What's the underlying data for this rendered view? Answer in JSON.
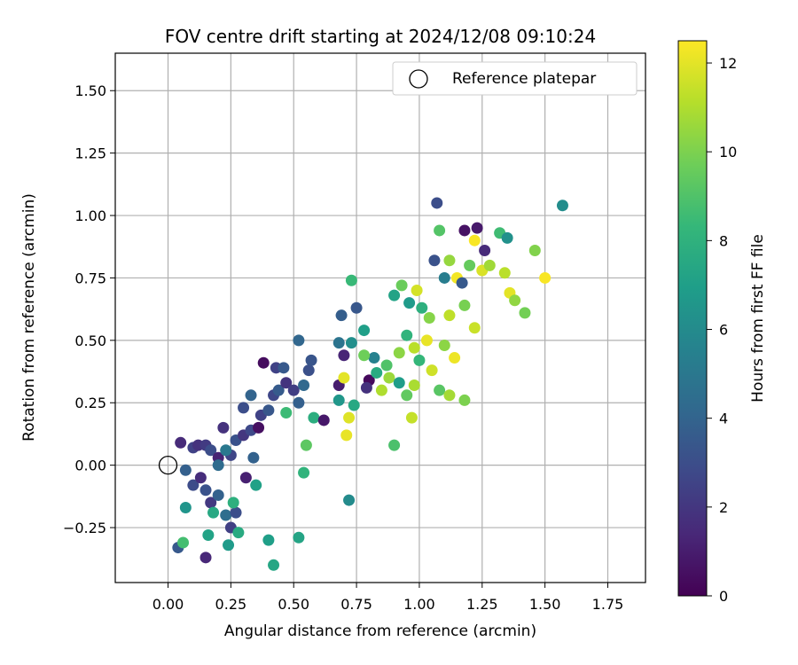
{
  "chart_data": {
    "type": "scatter",
    "title": "FOV centre drift starting at 2024/12/08 09:10:24",
    "xlabel": "Angular distance from reference (arcmin)",
    "ylabel": "Rotation from reference (arcmin)",
    "xlim": [
      -0.21,
      1.9
    ],
    "ylim": [
      -0.47,
      1.65
    ],
    "xticks": [
      "0.00",
      "0.25",
      "0.50",
      "0.75",
      "1.00",
      "1.25",
      "1.50",
      "1.75"
    ],
    "yticks": [
      "−0.25",
      "0.00",
      "0.25",
      "0.50",
      "0.75",
      "1.00",
      "1.25",
      "1.50"
    ],
    "grid": true,
    "legend": {
      "position": "top-right",
      "entries": [
        "Reference platepar"
      ]
    },
    "reference_point": {
      "x": 0.0,
      "y": 0.0
    },
    "colorbar": {
      "label": "Hours from first FF file",
      "range": [
        0,
        12.5
      ],
      "ticks": [
        "0",
        "2",
        "4",
        "6",
        "8",
        "10",
        "12"
      ],
      "colormap": "viridis"
    },
    "colormap_stops": [
      "#440154",
      "#482878",
      "#3e4989",
      "#31688e",
      "#26828e",
      "#1f9e89",
      "#35b779",
      "#6ece58",
      "#b5de2b",
      "#fde725"
    ],
    "points": [
      {
        "x": 0.05,
        "y": 0.09,
        "h": 1.5
      },
      {
        "x": 0.1,
        "y": 0.07,
        "h": 2.5
      },
      {
        "x": 0.12,
        "y": 0.08,
        "h": 1.8
      },
      {
        "x": 0.15,
        "y": 0.08,
        "h": 2.2
      },
      {
        "x": 0.17,
        "y": 0.06,
        "h": 3.0
      },
      {
        "x": 0.2,
        "y": 0.03,
        "h": 1.2
      },
      {
        "x": 0.22,
        "y": 0.15,
        "h": 1.8
      },
      {
        "x": 0.25,
        "y": 0.04,
        "h": 2.6
      },
      {
        "x": 0.27,
        "y": 0.1,
        "h": 3.2
      },
      {
        "x": 0.3,
        "y": 0.12,
        "h": 2.0
      },
      {
        "x": 0.33,
        "y": 0.14,
        "h": 2.8
      },
      {
        "x": 0.36,
        "y": 0.15,
        "h": 0.5
      },
      {
        "x": 0.3,
        "y": 0.23,
        "h": 3.0
      },
      {
        "x": 0.33,
        "y": 0.28,
        "h": 4.0
      },
      {
        "x": 0.37,
        "y": 0.2,
        "h": 2.5
      },
      {
        "x": 0.4,
        "y": 0.22,
        "h": 3.4
      },
      {
        "x": 0.42,
        "y": 0.28,
        "h": 2.7
      },
      {
        "x": 0.44,
        "y": 0.3,
        "h": 3.6
      },
      {
        "x": 0.47,
        "y": 0.33,
        "h": 1.9
      },
      {
        "x": 0.5,
        "y": 0.3,
        "h": 2.3
      },
      {
        "x": 0.52,
        "y": 0.25,
        "h": 3.8
      },
      {
        "x": 0.54,
        "y": 0.32,
        "h": 4.2
      },
      {
        "x": 0.56,
        "y": 0.38,
        "h": 3.1
      },
      {
        "x": 0.38,
        "y": 0.41,
        "h": 0.4
      },
      {
        "x": 0.43,
        "y": 0.39,
        "h": 2.5
      },
      {
        "x": 0.46,
        "y": 0.39,
        "h": 3.5
      },
      {
        "x": 0.52,
        "y": 0.5,
        "h": 4.1
      },
      {
        "x": 0.57,
        "y": 0.42,
        "h": 3.3
      },
      {
        "x": 0.07,
        "y": -0.02,
        "h": 3.8
      },
      {
        "x": 0.1,
        "y": -0.08,
        "h": 2.9
      },
      {
        "x": 0.13,
        "y": -0.05,
        "h": 1.6
      },
      {
        "x": 0.15,
        "y": -0.1,
        "h": 3.2
      },
      {
        "x": 0.17,
        "y": -0.15,
        "h": 2.1
      },
      {
        "x": 0.2,
        "y": -0.12,
        "h": 3.9
      },
      {
        "x": 0.23,
        "y": -0.2,
        "h": 4.5
      },
      {
        "x": 0.25,
        "y": -0.25,
        "h": 2.4
      },
      {
        "x": 0.27,
        "y": -0.19,
        "h": 3.0
      },
      {
        "x": 0.04,
        "y": -0.33,
        "h": 3.5
      },
      {
        "x": 0.15,
        "y": -0.37,
        "h": 1.4
      },
      {
        "x": 0.07,
        "y": -0.17,
        "h": 6.5
      },
      {
        "x": 0.18,
        "y": -0.19,
        "h": 7.5
      },
      {
        "x": 0.06,
        "y": -0.31,
        "h": 8.7
      },
      {
        "x": 0.16,
        "y": -0.28,
        "h": 7.2
      },
      {
        "x": 0.24,
        "y": -0.32,
        "h": 6.8
      },
      {
        "x": 0.28,
        "y": -0.27,
        "h": 7.6
      },
      {
        "x": 0.26,
        "y": -0.15,
        "h": 7.9
      },
      {
        "x": 0.35,
        "y": -0.08,
        "h": 7.1
      },
      {
        "x": 0.4,
        "y": -0.3,
        "h": 7.0
      },
      {
        "x": 0.42,
        "y": -0.4,
        "h": 7.4
      },
      {
        "x": 0.52,
        "y": -0.29,
        "h": 7.3
      },
      {
        "x": 0.54,
        "y": -0.03,
        "h": 8.1
      },
      {
        "x": 0.55,
        "y": 0.08,
        "h": 9.3
      },
      {
        "x": 0.47,
        "y": 0.21,
        "h": 8.5
      },
      {
        "x": 0.58,
        "y": 0.19,
        "h": 7.8
      },
      {
        "x": 0.62,
        "y": 0.18,
        "h": 0.8
      },
      {
        "x": 0.68,
        "y": 0.32,
        "h": 1.0
      },
      {
        "x": 0.7,
        "y": 0.44,
        "h": 1.3
      },
      {
        "x": 0.69,
        "y": 0.6,
        "h": 3.7
      },
      {
        "x": 0.75,
        "y": 0.63,
        "h": 3.4
      },
      {
        "x": 0.68,
        "y": 0.49,
        "h": 4.8
      },
      {
        "x": 0.73,
        "y": 0.49,
        "h": 6.2
      },
      {
        "x": 0.78,
        "y": 0.54,
        "h": 7.0
      },
      {
        "x": 0.82,
        "y": 0.43,
        "h": 5.5
      },
      {
        "x": 0.8,
        "y": 0.34,
        "h": 0.3
      },
      {
        "x": 0.79,
        "y": 0.31,
        "h": 1.8
      },
      {
        "x": 0.83,
        "y": 0.37,
        "h": 7.6
      },
      {
        "x": 0.85,
        "y": 0.3,
        "h": 11.0
      },
      {
        "x": 0.88,
        "y": 0.35,
        "h": 10.6
      },
      {
        "x": 0.92,
        "y": 0.33,
        "h": 6.9
      },
      {
        "x": 0.95,
        "y": 0.28,
        "h": 9.4
      },
      {
        "x": 0.98,
        "y": 0.32,
        "h": 10.9
      },
      {
        "x": 1.0,
        "y": 0.42,
        "h": 8.3
      },
      {
        "x": 0.73,
        "y": 0.74,
        "h": 8.4
      },
      {
        "x": 0.9,
        "y": 0.68,
        "h": 7.2
      },
      {
        "x": 0.93,
        "y": 0.72,
        "h": 9.6
      },
      {
        "x": 0.96,
        "y": 0.65,
        "h": 6.8
      },
      {
        "x": 0.99,
        "y": 0.7,
        "h": 11.7
      },
      {
        "x": 1.01,
        "y": 0.63,
        "h": 7.9
      },
      {
        "x": 1.04,
        "y": 0.59,
        "h": 10.2
      },
      {
        "x": 1.06,
        "y": 0.82,
        "h": 3.2
      },
      {
        "x": 1.07,
        "y": 1.05,
        "h": 3.0
      },
      {
        "x": 1.08,
        "y": 0.94,
        "h": 9.1
      },
      {
        "x": 1.1,
        "y": 0.75,
        "h": 5.3
      },
      {
        "x": 1.12,
        "y": 0.82,
        "h": 10.5
      },
      {
        "x": 1.15,
        "y": 0.75,
        "h": 12.3
      },
      {
        "x": 1.17,
        "y": 0.73,
        "h": 3.5
      },
      {
        "x": 1.18,
        "y": 0.94,
        "h": 0.6
      },
      {
        "x": 1.2,
        "y": 0.8,
        "h": 9.5
      },
      {
        "x": 1.22,
        "y": 0.9,
        "h": 12.4
      },
      {
        "x": 1.23,
        "y": 0.95,
        "h": 0.9
      },
      {
        "x": 1.25,
        "y": 0.78,
        "h": 11.8
      },
      {
        "x": 1.26,
        "y": 0.86,
        "h": 1.5
      },
      {
        "x": 1.28,
        "y": 0.8,
        "h": 10.7
      },
      {
        "x": 1.32,
        "y": 0.93,
        "h": 8.6
      },
      {
        "x": 1.34,
        "y": 0.77,
        "h": 11.2
      },
      {
        "x": 1.35,
        "y": 0.91,
        "h": 6.3
      },
      {
        "x": 1.36,
        "y": 0.69,
        "h": 12.0
      },
      {
        "x": 1.38,
        "y": 0.66,
        "h": 10.4
      },
      {
        "x": 1.42,
        "y": 0.61,
        "h": 9.8
      },
      {
        "x": 1.46,
        "y": 0.86,
        "h": 10.1
      },
      {
        "x": 1.5,
        "y": 0.75,
        "h": 12.4
      },
      {
        "x": 1.57,
        "y": 1.04,
        "h": 6.1
      },
      {
        "x": 1.12,
        "y": 0.6,
        "h": 11.3
      },
      {
        "x": 1.18,
        "y": 0.64,
        "h": 9.9
      },
      {
        "x": 1.22,
        "y": 0.55,
        "h": 11.5
      },
      {
        "x": 1.1,
        "y": 0.48,
        "h": 10.3
      },
      {
        "x": 1.14,
        "y": 0.43,
        "h": 12.2
      },
      {
        "x": 1.05,
        "y": 0.38,
        "h": 11.6
      },
      {
        "x": 1.08,
        "y": 0.3,
        "h": 9.2
      },
      {
        "x": 1.12,
        "y": 0.28,
        "h": 10.8
      },
      {
        "x": 1.18,
        "y": 0.26,
        "h": 10.0
      },
      {
        "x": 0.71,
        "y": 0.12,
        "h": 12.1
      },
      {
        "x": 0.72,
        "y": 0.19,
        "h": 11.9
      },
      {
        "x": 0.74,
        "y": 0.24,
        "h": 7.5
      },
      {
        "x": 0.72,
        "y": -0.14,
        "h": 6.0
      },
      {
        "x": 0.9,
        "y": 0.08,
        "h": 8.9
      },
      {
        "x": 0.97,
        "y": 0.19,
        "h": 11.4
      },
      {
        "x": 0.68,
        "y": 0.26,
        "h": 6.6
      },
      {
        "x": 0.7,
        "y": 0.35,
        "h": 12.0
      },
      {
        "x": 0.78,
        "y": 0.44,
        "h": 9.7
      },
      {
        "x": 0.87,
        "y": 0.4,
        "h": 9.0
      },
      {
        "x": 0.92,
        "y": 0.45,
        "h": 10.3
      },
      {
        "x": 0.95,
        "y": 0.52,
        "h": 8.1
      },
      {
        "x": 0.98,
        "y": 0.47,
        "h": 11.2
      },
      {
        "x": 1.03,
        "y": 0.5,
        "h": 12.1
      },
      {
        "x": 0.2,
        "y": 0.0,
        "h": 4.4
      },
      {
        "x": 0.23,
        "y": 0.06,
        "h": 5.0
      },
      {
        "x": 0.31,
        "y": -0.05,
        "h": 1.1
      },
      {
        "x": 0.34,
        "y": 0.03,
        "h": 3.9
      }
    ]
  }
}
